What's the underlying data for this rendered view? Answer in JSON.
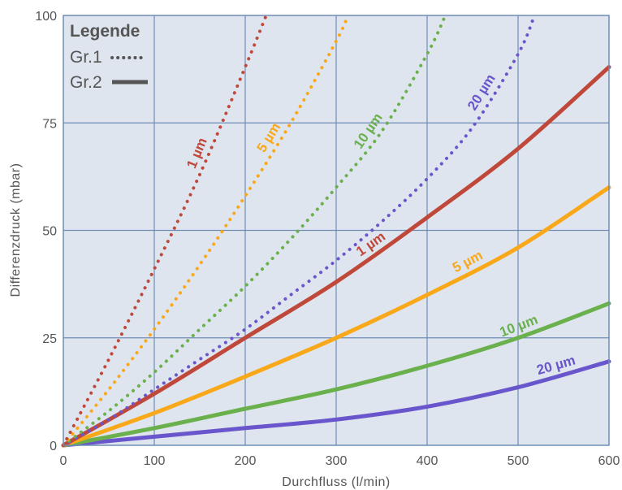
{
  "chart_data": {
    "type": "line",
    "xlabel": "Durchfluss (l/min)",
    "ylabel": "Differenzdruck (mbar)",
    "xlim": [
      0,
      600
    ],
    "ylim": [
      0,
      100
    ],
    "xticks": [
      0,
      100,
      200,
      300,
      400,
      500,
      600
    ],
    "yticks": [
      0,
      25,
      50,
      75,
      100
    ],
    "grid": true,
    "background": "#dfe5ee",
    "grid_color": "#6f8db5",
    "legend": {
      "title": "Legende",
      "placement": "top-left",
      "entries": [
        {
          "label": "Gr.1",
          "style": "dotted"
        },
        {
          "label": "Gr.2",
          "style": "solid"
        }
      ]
    },
    "series": [
      {
        "label": "1 µm",
        "group": "Gr.1",
        "color": "#c0483a",
        "style": "dotted",
        "x": [
          0,
          50,
          100,
          150,
          200,
          223
        ],
        "y": [
          0,
          20,
          41,
          63,
          88,
          100
        ]
      },
      {
        "label": "5 µm",
        "group": "Gr.1",
        "color": "#f9a81a",
        "style": "dotted",
        "x": [
          0,
          50,
          100,
          150,
          200,
          250,
          300,
          313
        ],
        "y": [
          0,
          13,
          27,
          42,
          58,
          75,
          94,
          100
        ]
      },
      {
        "label": "10 µm",
        "group": "Gr.1",
        "color": "#6ab04c",
        "style": "dotted",
        "x": [
          0,
          50,
          100,
          150,
          200,
          250,
          300,
          350,
          400,
          420
        ],
        "y": [
          0,
          8,
          17,
          27,
          37,
          48,
          60,
          73,
          91,
          100
        ]
      },
      {
        "label": "20 µm",
        "group": "Gr.1",
        "color": "#6a56cc",
        "style": "dotted",
        "x": [
          0,
          50,
          100,
          150,
          200,
          250,
          300,
          350,
          400,
          450,
          500,
          518
        ],
        "y": [
          0,
          6,
          13,
          20,
          27,
          35,
          43,
          52,
          62,
          74,
          91,
          100
        ]
      },
      {
        "label": "1 µm",
        "group": "Gr.2",
        "color": "#c0483a",
        "style": "solid",
        "x": [
          0,
          100,
          200,
          300,
          400,
          500,
          600
        ],
        "y": [
          0,
          12,
          25,
          38,
          53,
          69,
          88
        ]
      },
      {
        "label": "5 µm",
        "group": "Gr.2",
        "color": "#f9a81a",
        "style": "solid",
        "x": [
          0,
          100,
          200,
          300,
          400,
          500,
          600
        ],
        "y": [
          0,
          7.5,
          16,
          25,
          35,
          46,
          60
        ]
      },
      {
        "label": "10 µm",
        "group": "Gr.2",
        "color": "#6ab04c",
        "style": "solid",
        "x": [
          0,
          100,
          200,
          300,
          400,
          500,
          600
        ],
        "y": [
          0,
          4,
          8.5,
          13,
          18.5,
          25,
          33
        ]
      },
      {
        "label": "20 µm",
        "group": "Gr.2",
        "color": "#6a56cc",
        "style": "solid",
        "x": [
          0,
          100,
          200,
          300,
          400,
          500,
          600
        ],
        "y": [
          0,
          2,
          4,
          6,
          9,
          13.5,
          19.5
        ]
      }
    ]
  }
}
